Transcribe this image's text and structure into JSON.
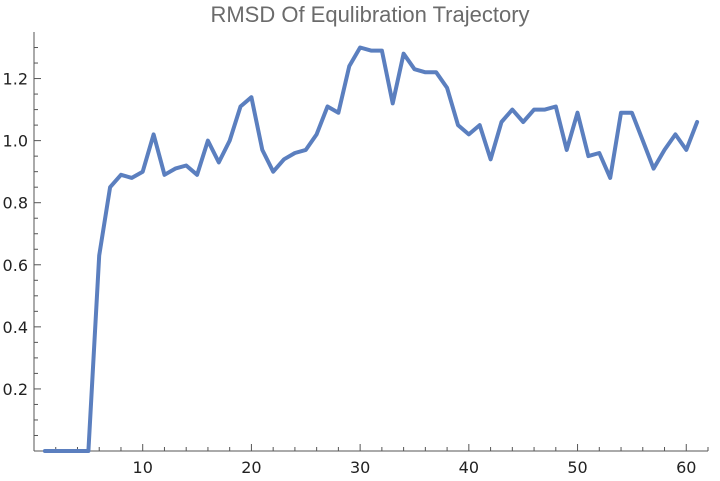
{
  "chart_data": {
    "type": "line",
    "title": "RMSD Of Equlibration Trajectory",
    "xlabel": "",
    "ylabel": "",
    "xlim": [
      0,
      62
    ],
    "ylim": [
      0,
      1.35
    ],
    "x_ticks": [
      10,
      20,
      30,
      40,
      50,
      60
    ],
    "y_ticks": [
      0.2,
      0.4,
      0.6,
      0.8,
      1.0,
      1.2
    ],
    "x_tick_labels": [
      "10",
      "20",
      "30",
      "40",
      "50",
      "60"
    ],
    "y_tick_labels": [
      "0.2",
      "0.4",
      "0.6",
      "0.8",
      "1.0",
      "1.2"
    ],
    "grid": false,
    "line_color": "#5b7fbf",
    "series": [
      {
        "x": [
          1,
          2,
          3,
          4,
          5,
          6,
          7,
          8,
          9,
          10,
          11,
          12,
          13,
          14,
          15,
          16,
          17,
          18,
          19,
          20,
          21,
          22,
          23,
          24,
          25,
          26,
          27,
          28,
          29,
          30,
          31,
          32,
          33,
          34,
          35,
          36,
          37,
          38,
          39,
          40,
          41,
          42,
          43,
          44,
          45,
          46,
          47,
          48,
          49,
          50,
          51,
          52,
          53,
          54,
          55,
          56,
          57,
          58,
          59,
          60,
          61
        ],
        "values": [
          0,
          0,
          0,
          0,
          0,
          0.63,
          0.85,
          0.89,
          0.88,
          0.9,
          1.02,
          0.89,
          0.91,
          0.92,
          0.89,
          1.0,
          0.93,
          1.0,
          1.11,
          1.14,
          0.97,
          0.9,
          0.94,
          0.96,
          0.97,
          1.02,
          1.11,
          1.09,
          1.24,
          1.3,
          1.29,
          1.29,
          1.12,
          1.28,
          1.23,
          1.22,
          1.22,
          1.17,
          1.05,
          1.02,
          1.05,
          0.94,
          1.06,
          1.1,
          1.06,
          1.1,
          1.1,
          1.11,
          0.97,
          1.09,
          0.95,
          0.96,
          0.88,
          1.09,
          1.09,
          1.0,
          0.91,
          0.97,
          1.02,
          0.97,
          1.06
        ]
      }
    ]
  }
}
